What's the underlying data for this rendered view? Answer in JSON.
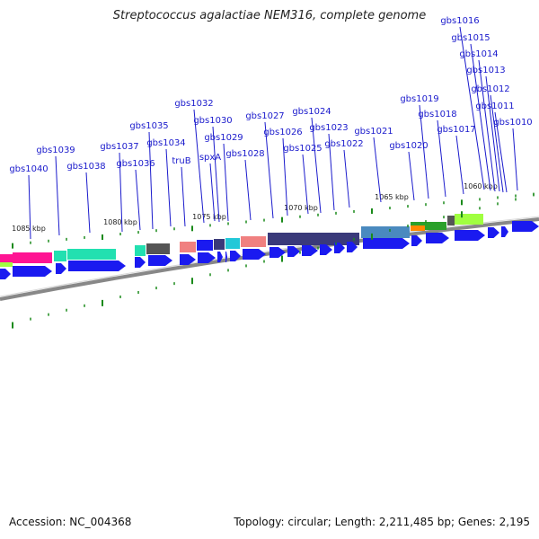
{
  "title": "Streptococcus agalactiae NEM316, complete genome",
  "footer": {
    "accession": "Accession: NC_004368",
    "summary": "Topology: circular; Length: 2,211,485 bp; Genes: 2,195"
  },
  "colors": {
    "label": "#1a1acc",
    "cds": "#1a1af0",
    "tick": "#1a8a1a",
    "backbone": "#888888",
    "cog_teal": "#22e0b0",
    "cog_pink": "#ff1493",
    "cog_gray": "#555555",
    "cog_salmon": "#f08080",
    "cog_cyan": "#22c8d8",
    "cog_navy": "#3a3a7a",
    "cog_steel": "#4a8abf",
    "cog_green": "#2aa02a",
    "cog_lime": "#a0ff40",
    "cog_orange": "#ff8800"
  },
  "kbp_labels": [
    "1085 kbp",
    "1080 kbp",
    "1075 kbp",
    "1070 kbp",
    "1065 kbp",
    "1060 kbp"
  ],
  "genes": [
    "gbs1040",
    "gbs1039",
    "gbs1038",
    "gbs1037",
    "gbs1036",
    "gbs1035",
    "gbs1034",
    "truB",
    "gbs1032",
    "spxA",
    "gbs1030",
    "gbs1029",
    "gbs1028",
    "gbs1027",
    "gbs1026",
    "gbs1025",
    "gbs1024",
    "gbs1023",
    "gbs1022",
    "gbs1021",
    "gbs1020",
    "gbs1019",
    "gbs1018",
    "gbs1017",
    "gbs1016",
    "gbs1015",
    "gbs1014",
    "gbs1013",
    "gbs1012",
    "gbs1011",
    "gbs1010"
  ]
}
